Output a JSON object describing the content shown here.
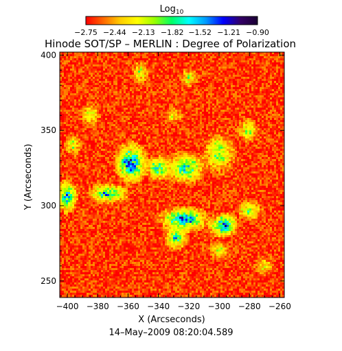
{
  "chart_data": {
    "type": "heatmap",
    "title": "Hinode SOT/SP – MERLIN : Degree of Polarization",
    "xlabel": "X (Arcseconds)",
    "ylabel": "Y (Arcseconds)",
    "date_label": "14–May–2009 08:20:04.589",
    "xlim": [
      -405,
      -257
    ],
    "ylim": [
      239,
      402
    ],
    "x_ticks": [
      -400,
      -380,
      -360,
      -340,
      -320,
      -300,
      -280,
      -260
    ],
    "y_ticks": [
      250,
      300,
      350,
      400
    ],
    "x_tick_labels": [
      "−400",
      "−380",
      "−360",
      "−340",
      "−320",
      "−300",
      "−280",
      "−260"
    ],
    "y_tick_labels": [
      "250",
      "300",
      "350",
      "400"
    ],
    "colorbar": {
      "label_base": "Log",
      "label_sub": "10",
      "ticks": [
        -2.75,
        -2.44,
        -2.13,
        -1.82,
        -1.52,
        -1.21,
        -0.9
      ],
      "tick_labels": [
        "−2.75",
        "−2.44",
        "−2.13",
        "−1.82",
        "−1.52",
        "−1.21",
        "−0.90"
      ],
      "range": [
        -2.75,
        -0.9
      ],
      "colors": [
        "#ff0000",
        "#ff6600",
        "#ffcc00",
        "#ffff00",
        "#99ff00",
        "#00ff66",
        "#00ffff",
        "#0099ff",
        "#0000ff",
        "#330066",
        "#1a0033"
      ]
    },
    "background_level": -2.65,
    "enhanced_regions": [
      {
        "x": -358,
        "y": 328,
        "rx": 8,
        "ry": 10,
        "level": -1.3
      },
      {
        "x": -340,
        "y": 325,
        "rx": 6,
        "ry": 6,
        "level": -1.6
      },
      {
        "x": -322,
        "y": 325,
        "rx": 10,
        "ry": 8,
        "level": -1.7
      },
      {
        "x": -300,
        "y": 335,
        "rx": 8,
        "ry": 10,
        "level": -1.9
      },
      {
        "x": -373,
        "y": 308,
        "rx": 10,
        "ry": 5,
        "level": -1.6
      },
      {
        "x": -400,
        "y": 306,
        "rx": 5,
        "ry": 8,
        "level": -1.5
      },
      {
        "x": -323,
        "y": 291,
        "rx": 12,
        "ry": 6,
        "level": -1.4
      },
      {
        "x": -297,
        "y": 287,
        "rx": 7,
        "ry": 6,
        "level": -1.3
      },
      {
        "x": -280,
        "y": 297,
        "rx": 6,
        "ry": 5,
        "level": -1.9
      },
      {
        "x": -328,
        "y": 279,
        "rx": 6,
        "ry": 6,
        "level": -1.7
      },
      {
        "x": -352,
        "y": 388,
        "rx": 4,
        "ry": 6,
        "level": -2.1
      },
      {
        "x": -320,
        "y": 385,
        "rx": 4,
        "ry": 5,
        "level": -2.1
      },
      {
        "x": -385,
        "y": 360,
        "rx": 5,
        "ry": 6,
        "level": -2.1
      },
      {
        "x": -281,
        "y": 350,
        "rx": 5,
        "ry": 6,
        "level": -2.0
      },
      {
        "x": -300,
        "y": 270,
        "rx": 5,
        "ry": 5,
        "level": -2.1
      },
      {
        "x": -270,
        "y": 260,
        "rx": 5,
        "ry": 5,
        "level": -2.2
      },
      {
        "x": -396,
        "y": 340,
        "rx": 4,
        "ry": 5,
        "level": -2.0
      },
      {
        "x": -330,
        "y": 360,
        "rx": 5,
        "ry": 4,
        "level": -2.2
      }
    ]
  }
}
